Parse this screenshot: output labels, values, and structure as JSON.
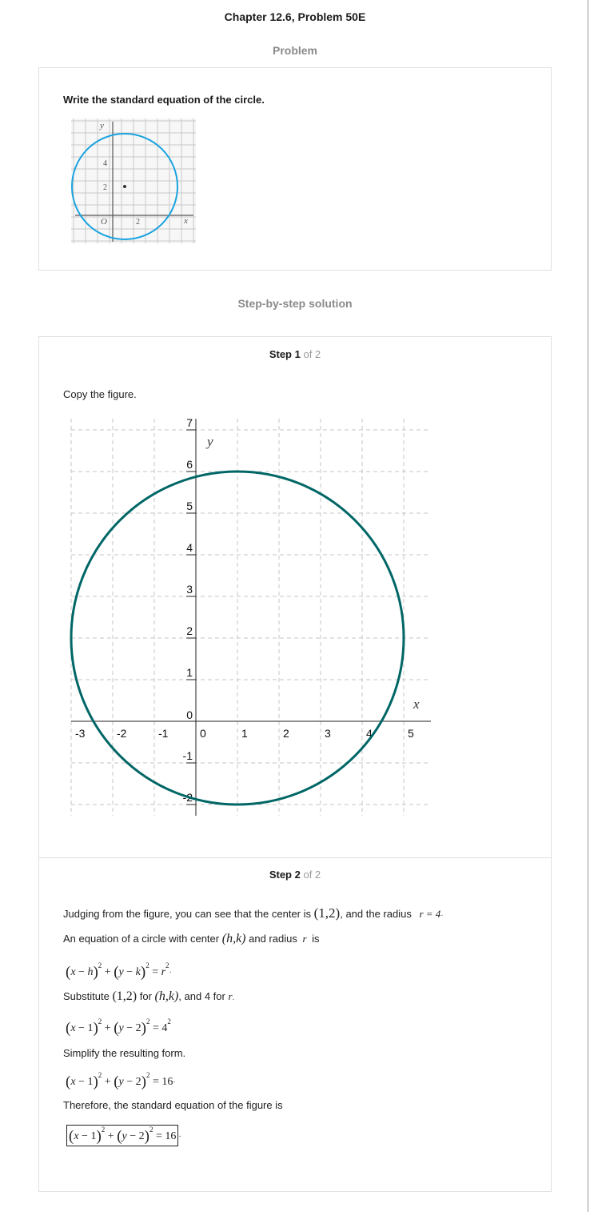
{
  "header": {
    "title": "Chapter 12.6, Problem 50E"
  },
  "problem": {
    "section_label": "Problem",
    "question": "Write the standard equation of the circle.",
    "figure_labels": {
      "y": "y",
      "x": "x",
      "origin": "O",
      "tick_y4": "4",
      "tick_y2": "2",
      "tick_x2": "2"
    }
  },
  "solution": {
    "section_label": "Step-by-step solution",
    "step1": {
      "label": "Step 1",
      "of": "of 2",
      "text": "Copy the figure."
    },
    "step2": {
      "label": "Step 2",
      "of": "of 2",
      "line1_pre": "Judging from the figure, you can see that the center is",
      "center": "(1,2)",
      "line1_mid": ", and the radius",
      "radius_expr": "r = 4",
      "line2_pre": "An equation of a circle with center",
      "hk": "(h,k)",
      "line2_mid": "and radius",
      "r_var": "r",
      "line2_end": "is",
      "line3_pre": "Substitute",
      "line3_mid1": "for",
      "line3_mid2": ", and 4 for",
      "line4": "Simplify the resulting form.",
      "line5": "Therefore, the standard equation of the figure is"
    }
  },
  "chart_data": {
    "type": "line",
    "title": "",
    "xlabel": "x",
    "ylabel": "y",
    "xlim": [
      -3,
      5
    ],
    "ylim": [
      -2,
      7
    ],
    "x_ticks": [
      "-3",
      "-2",
      "-1",
      "0",
      "1",
      "2",
      "3",
      "4",
      "5"
    ],
    "y_ticks": [
      "7",
      "6",
      "5",
      "4",
      "3",
      "2",
      "1",
      "0",
      "-1",
      "-2"
    ],
    "series": [
      {
        "name": "circle",
        "center": [
          1,
          2
        ],
        "radius": 4,
        "color": "#006666"
      }
    ],
    "grid": true
  }
}
